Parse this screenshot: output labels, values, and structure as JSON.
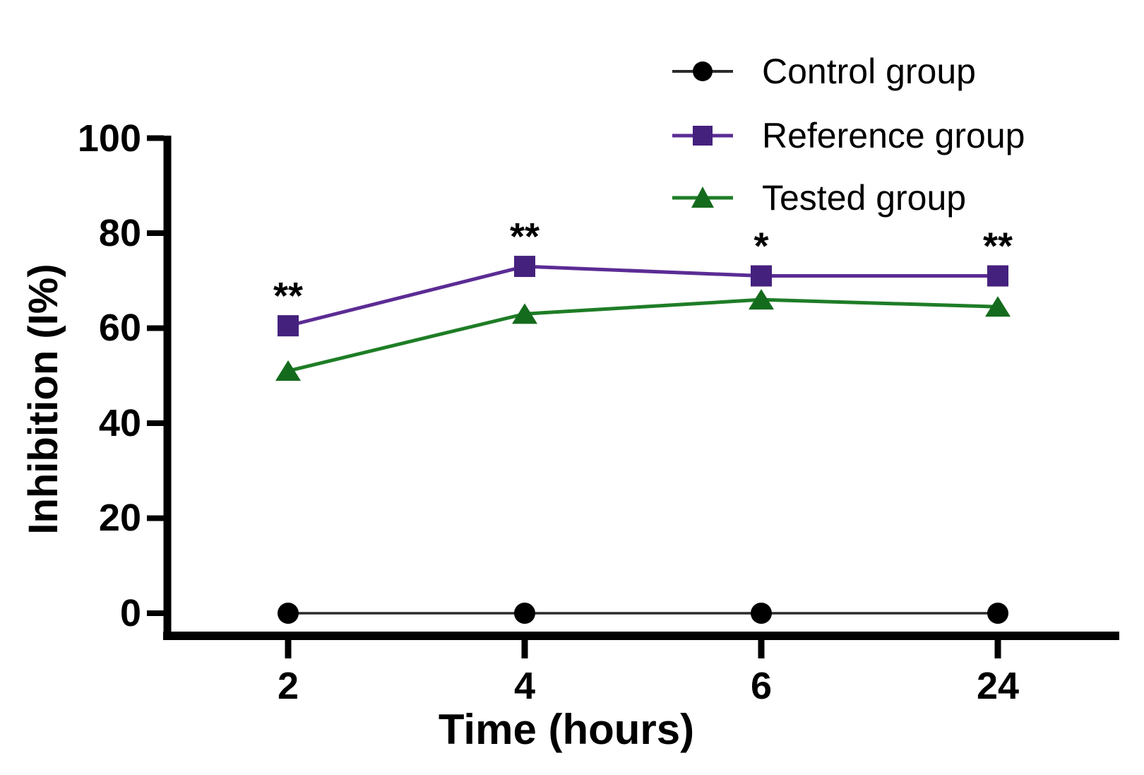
{
  "chart_data": {
    "type": "line",
    "title": "",
    "xlabel": "Time (hours)",
    "ylabel": "Inhibition (I%)",
    "categories": [
      "2",
      "4",
      "6",
      "24"
    ],
    "x_values": [
      2,
      4,
      6,
      24
    ],
    "ylim": [
      0,
      100
    ],
    "yticks": [
      100,
      80,
      60,
      40,
      20,
      0
    ],
    "grid": false,
    "legend_position": "top-right",
    "series": [
      {
        "name": "Control group",
        "marker": "circle",
        "color": "#000000",
        "line_color": "#2b2b2b",
        "values": [
          0,
          0,
          0,
          0
        ]
      },
      {
        "name": "Reference group",
        "marker": "square",
        "color": "#45217E",
        "line_color": "#5B2C94",
        "values": [
          60.5,
          73,
          71,
          71
        ]
      },
      {
        "name": "Tested group",
        "marker": "triangle",
        "color": "#156B1D",
        "line_color": "#1E7D26",
        "values": [
          51,
          63,
          66,
          64.5
        ]
      }
    ],
    "annotations": [
      {
        "category": "2",
        "series": "Reference group",
        "label": "**"
      },
      {
        "category": "4",
        "series": "Reference group",
        "label": "**"
      },
      {
        "category": "6",
        "series": "Reference group",
        "label": "*"
      },
      {
        "category": "24",
        "series": "Reference group",
        "label": "**"
      }
    ]
  }
}
